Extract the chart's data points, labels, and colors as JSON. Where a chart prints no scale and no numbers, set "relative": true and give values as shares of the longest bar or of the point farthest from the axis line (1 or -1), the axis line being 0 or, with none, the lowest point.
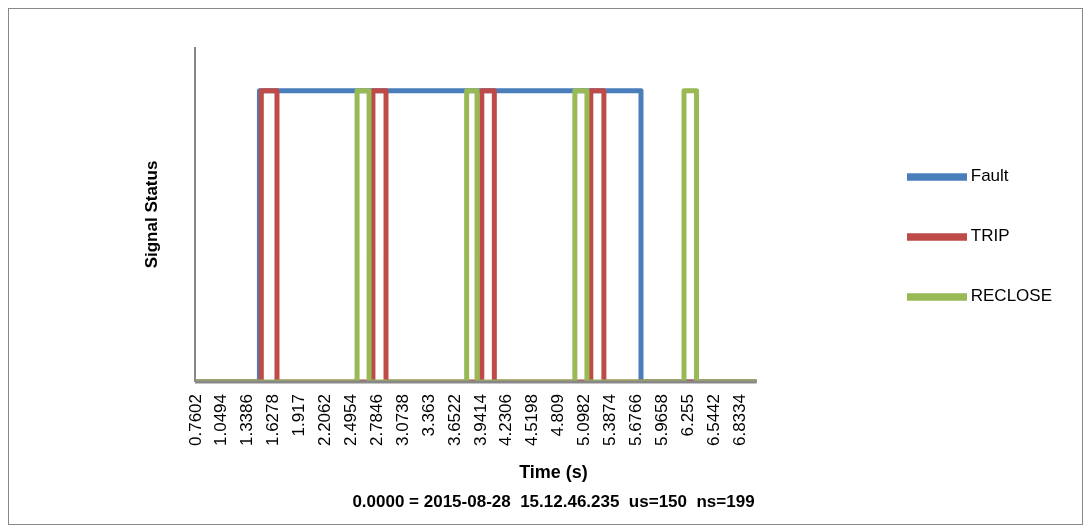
{
  "chart_data": {
    "type": "step",
    "relative": true,
    "xlabel": "Time (s)",
    "ylabel": "Signal Status",
    "annotations": [
      "0.0000 = 2015-08-28  15.12.46.235  us=150  ns=199"
    ],
    "xlim": [
      0.76,
      7.03
    ],
    "xticks": [
      0.7602,
      1.0494,
      1.3386,
      1.6278,
      1.917,
      2.2062,
      2.4954,
      2.7846,
      3.0738,
      3.363,
      3.6522,
      3.9414,
      4.2306,
      4.5198,
      4.809,
      5.0982,
      5.3874,
      5.6766,
      5.9658,
      6.255,
      6.5442,
      6.8334
    ],
    "legend": "right",
    "grid": false,
    "marker": "none",
    "line_style": "solid",
    "series": [
      {
        "name": "Fault",
        "color": "#4a7ebb",
        "x": [
          0.76,
          1.479,
          5.738,
          7.03
        ],
        "values": [
          0,
          1,
          0,
          0
        ]
      },
      {
        "name": "TRIP",
        "color": "#be4b48",
        "x": [
          0.76,
          1.5,
          1.675,
          2.746,
          2.892,
          3.961,
          4.101,
          5.178,
          5.324,
          7.03
        ],
        "values": [
          0,
          1,
          0,
          1,
          0,
          1,
          0,
          1,
          0,
          0
        ]
      },
      {
        "name": "RECLOSE",
        "color": "#98b954",
        "x": [
          0.76,
          2.569,
          2.703,
          3.792,
          3.908,
          5.0,
          5.135,
          6.218,
          6.358,
          7.03
        ],
        "values": [
          0,
          1,
          0,
          1,
          0,
          1,
          0,
          1,
          0,
          0
        ]
      }
    ]
  }
}
